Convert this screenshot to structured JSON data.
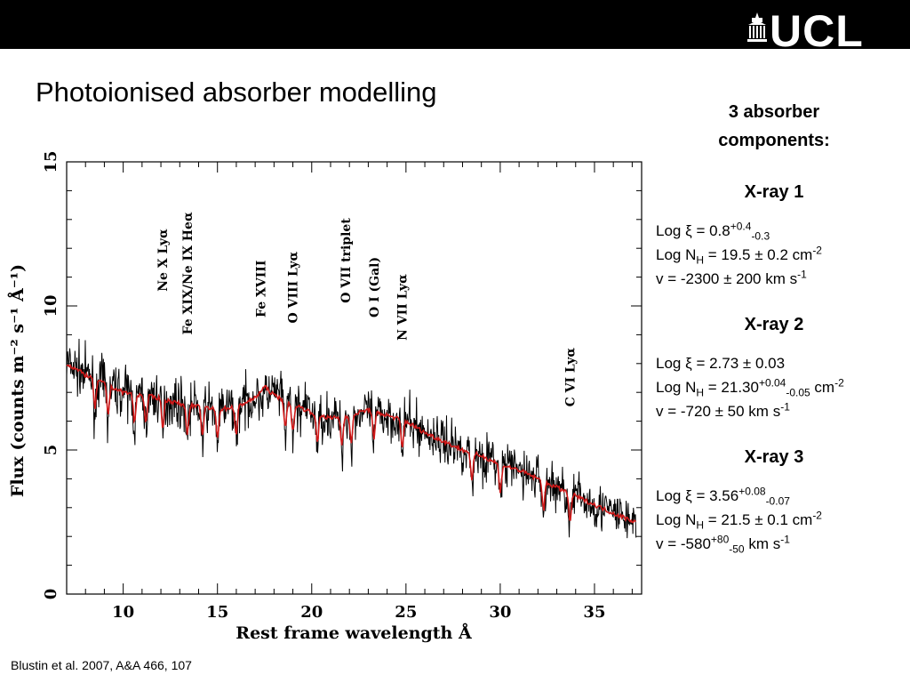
{
  "slide_title": "Photoionised absorber modelling",
  "logo_text": "UCL",
  "citation": "Blustin et al. 2007, A&A 466, 107",
  "panel": {
    "heading": [
      "3 absorber",
      "components:"
    ],
    "components": [
      {
        "title": "X-ray 1",
        "xi": {
          "prefix": "Log ",
          "symbol": "ξ",
          "mid": " = 0.8",
          "sup": "+0.4",
          "sub": "-0.3",
          "tail": ""
        },
        "nh": {
          "prefix": "Log N",
          "sub_h": "H",
          "mid": " = 19.5 ± 0.2 cm",
          "sup": "-2",
          "sub": "",
          "tail": ""
        },
        "v": {
          "prefix": "v = -2300 ± 200 km s",
          "sup": "-1",
          "sub": "",
          "tail": ""
        }
      },
      {
        "title": "X-ray 2",
        "xi": {
          "prefix": "Log ",
          "symbol": "ξ",
          "mid": " = 2.73 ± 0.03",
          "sup": "",
          "sub": "",
          "tail": ""
        },
        "nh": {
          "prefix": "Log N",
          "sub_h": "H",
          "mid": " = 21.30",
          "sup": "+0.04",
          "sub": "-0.05",
          "tail": " cm",
          "sup2": "-2"
        },
        "v": {
          "prefix": "v = -720 ± 50 km s",
          "sup": "-1",
          "sub": "",
          "tail": ""
        }
      },
      {
        "title": "X-ray 3",
        "xi": {
          "prefix": "Log ",
          "symbol": "ξ",
          "mid": " = 3.56",
          "sup": "+0.08",
          "sub": "-0.07",
          "tail": ""
        },
        "nh": {
          "prefix": "Log N",
          "sub_h": "H",
          "mid": " = 21.5 ± 0.1 cm",
          "sup": "-2",
          "sub": "",
          "tail": ""
        },
        "v": {
          "prefix": "v = -580",
          "sup": "+80",
          "sub": "-50",
          "tail": " km s",
          "sup2": "-1"
        }
      }
    ]
  },
  "chart_data": {
    "type": "line",
    "xlabel": "Rest frame wavelength Å",
    "ylabel": "Flux (counts m⁻² s⁻¹ Å⁻¹)",
    "xlim": [
      7,
      37.5
    ],
    "ylim": [
      0,
      15
    ],
    "xticks": [
      10,
      15,
      20,
      25,
      30,
      35
    ],
    "yticks": [
      0,
      5,
      10,
      15
    ],
    "colors": {
      "data": "#000000",
      "model": "#d01818"
    },
    "series": [
      {
        "kind": "data",
        "x": [
          7.0,
          8.0,
          9.0,
          10.0,
          11.0,
          12.0,
          13.0,
          14.0,
          15.0,
          16.0,
          17.0,
          18.0,
          19.0,
          20.0,
          21.0,
          22.0,
          23.0,
          24.0,
          25.0,
          26.0,
          27.0,
          28.0,
          29.0,
          30.0,
          31.0,
          32.0,
          33.0,
          34.0,
          35.0,
          36.0,
          37.2
        ],
        "y": [
          8.0,
          7.6,
          7.3,
          7.0,
          6.9,
          6.8,
          6.6,
          6.5,
          6.4,
          6.5,
          6.8,
          7.0,
          6.6,
          6.3,
          6.1,
          6.2,
          6.3,
          6.2,
          6.0,
          5.6,
          5.3,
          5.0,
          4.8,
          4.5,
          4.3,
          4.0,
          3.7,
          3.4,
          3.1,
          2.8,
          2.5
        ]
      },
      {
        "kind": "model",
        "x": [
          7.0,
          8.0,
          9.0,
          10.0,
          11.0,
          12.0,
          13.0,
          14.0,
          15.0,
          16.0,
          17.0,
          17.5,
          18.0,
          19.0,
          20.0,
          21.0,
          22.0,
          23.0,
          24.0,
          25.0,
          26.0,
          27.0,
          28.0,
          29.0,
          30.0,
          31.0,
          32.0,
          33.0,
          34.0,
          35.0,
          36.0,
          37.2
        ],
        "y": [
          8.0,
          7.6,
          7.3,
          7.0,
          6.9,
          6.8,
          6.6,
          6.5,
          6.4,
          6.5,
          6.8,
          7.2,
          6.9,
          6.6,
          6.3,
          6.1,
          6.2,
          6.4,
          6.2,
          6.0,
          5.6,
          5.3,
          5.0,
          4.8,
          4.5,
          4.3,
          4.0,
          3.7,
          3.4,
          3.1,
          2.8,
          2.5
        ]
      }
    ],
    "annotations": [
      {
        "text": "Ne X Lyα",
        "x": 12.1,
        "y": 10.5
      },
      {
        "text": "Fe XIX/Ne IX Heα",
        "x": 13.4,
        "y": 9.0
      },
      {
        "text": "Fe XVIII",
        "x": 17.3,
        "y": 9.6
      },
      {
        "text": "O VIII Lyα",
        "x": 19.0,
        "y": 9.4
      },
      {
        "text": "O VII triplet",
        "x": 21.8,
        "y": 10.1
      },
      {
        "text": "O I (Gal)",
        "x": 23.3,
        "y": 9.6
      },
      {
        "text": "N VII Lyα",
        "x": 24.8,
        "y": 8.8
      },
      {
        "text": "C VI Lyα",
        "x": 33.7,
        "y": 6.5
      }
    ]
  }
}
